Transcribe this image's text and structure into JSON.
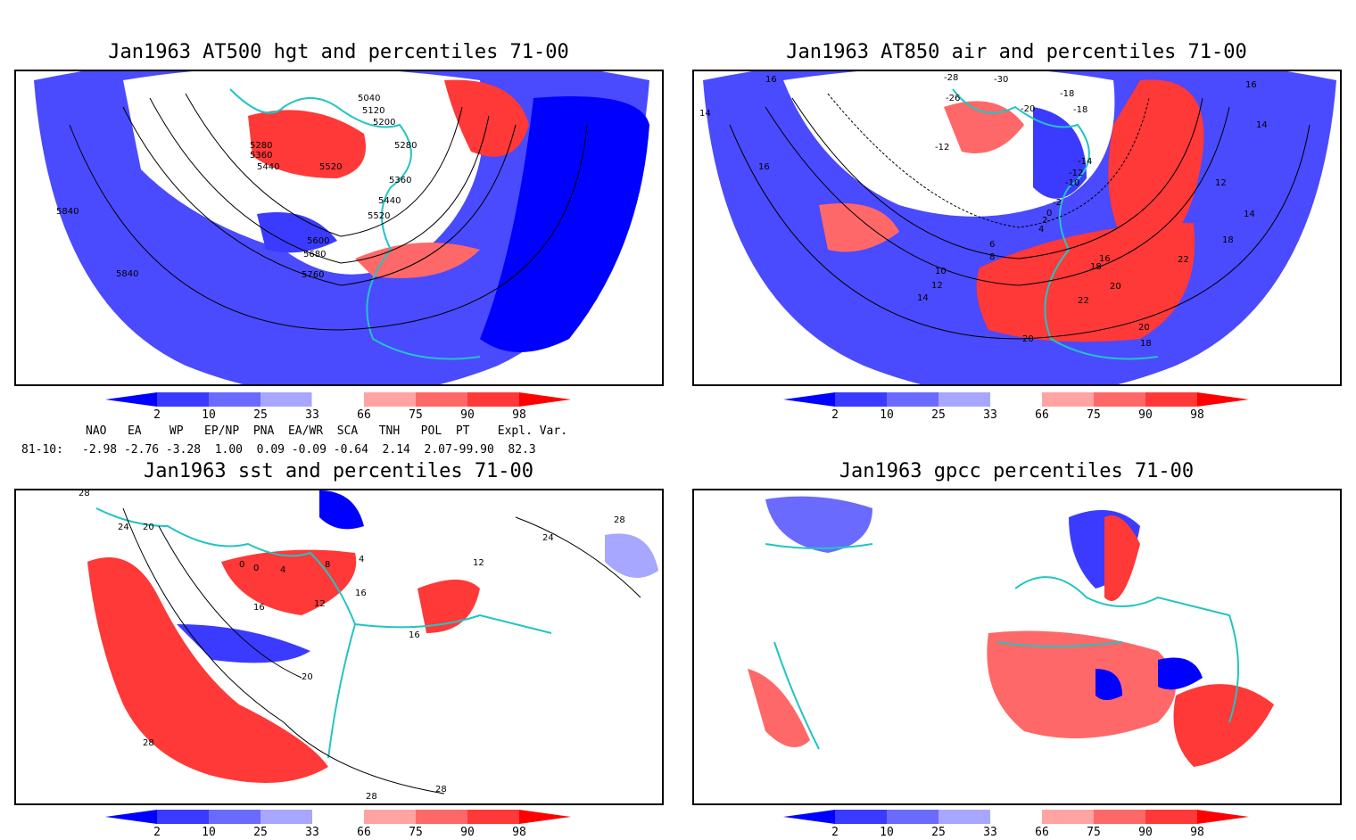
{
  "panels": [
    {
      "title": "Jan1963 AT500 hgt and percentiles 71-00",
      "contour_labels": [
        "5040",
        "5120",
        "5200",
        "5280",
        "5280",
        "5360",
        "5440",
        "5520",
        "5360",
        "5440",
        "5520",
        "5600",
        "5680",
        "5760",
        "5840",
        "5840"
      ]
    },
    {
      "title": "Jan1963 AT850 air and percentiles 71-00",
      "contour_labels": [
        "-28",
        "-30",
        "-26",
        "-20",
        "-18",
        "-18",
        "-12",
        "-14",
        "-12",
        "-10",
        "-2",
        "0",
        "2",
        "4",
        "6",
        "8",
        "10",
        "12",
        "14",
        "16",
        "16",
        "18",
        "20",
        "22",
        "22",
        "20",
        "20",
        "18",
        "18",
        "14",
        "12",
        "14",
        "14",
        "16",
        "16"
      ]
    },
    {
      "title": "Jan1963 sst and percentiles 71-00",
      "contour_labels": [
        "28",
        "24",
        "20",
        "0",
        "0",
        "4",
        "8",
        "4",
        "12",
        "16",
        "16",
        "20",
        "28",
        "28",
        "28",
        "24",
        "12",
        "16",
        "28"
      ]
    },
    {
      "title": "Jan1963 gpcc percentiles 71-00",
      "contour_labels": []
    }
  ],
  "colorbar": {
    "labels": [
      "2",
      "10",
      "25",
      "33",
      "66",
      "75",
      "90",
      "98"
    ],
    "colors": [
      "#0000ff",
      "#3b3bff",
      "#6a6aff",
      "#a7a7ff",
      "#ffa3a3",
      "#ff6868",
      "#ff3838",
      "#ff0000"
    ]
  },
  "indices": {
    "header": "NAO   EA    WP   EP/NP  PNA  EA/WR  SCA   TNH   POL  PT    Expl. Var.",
    "row_label": "81-10:",
    "row_values": "-2.98 -2.76 -3.28  1.00  0.09 -0.09 -0.64  2.14  2.07-99.90  82.3"
  }
}
